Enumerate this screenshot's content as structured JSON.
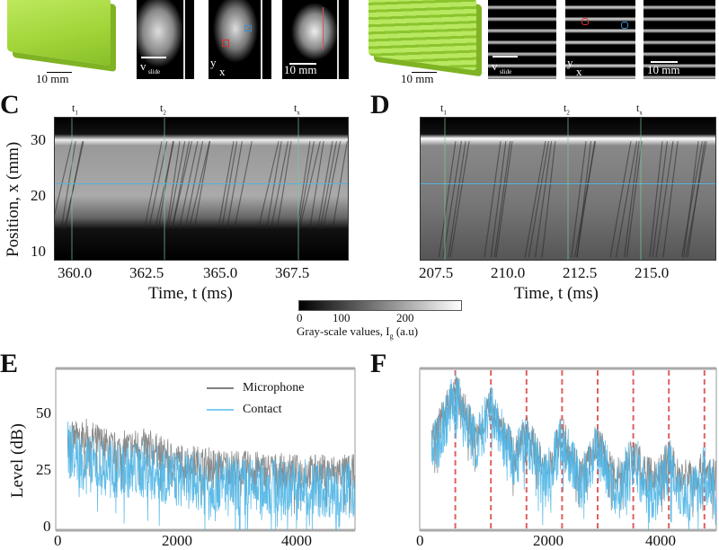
{
  "panel_a": {
    "scale_label": "10 mm",
    "image_scale_label": "10 mm",
    "v_label": "v",
    "v_sub": "slide",
    "axes_label_y": "y",
    "axes_label_x": "x"
  },
  "panel_b": {
    "scale_label": "10 mm",
    "image_scale_label": "10 mm",
    "v_label": "v",
    "v_sub": "slide",
    "axes_label_y": "y",
    "axes_label_x": "x"
  },
  "colors": {
    "block": "#a6dc3c",
    "microphone": "#808080",
    "contact": "#4fb5e6",
    "marker_line": "#e06060",
    "blue_line": "#5aaee0"
  },
  "panel_c": {
    "label": "C",
    "ylabel": "Position, x (mm)",
    "xlabel": "Time, t (ms)",
    "yticks": [
      "30",
      "20",
      "10"
    ],
    "xticks": [
      "360.0",
      "362.5",
      "365.0",
      "367.5"
    ],
    "markers": [
      "t",
      "t",
      "t"
    ],
    "marker_subs": [
      "1",
      "2",
      "x"
    ],
    "xlim": [
      359.1,
      369.4
    ],
    "ylim": [
      8.4,
      34.4
    ]
  },
  "panel_d": {
    "label": "D",
    "xlabel": "Time, t (ms)",
    "xticks": [
      "207.5",
      "210.0",
      "212.5",
      "215.0"
    ],
    "markers": [
      "t",
      "t",
      "t"
    ],
    "marker_subs": [
      "1",
      "2",
      "x"
    ],
    "xlim": [
      206.8,
      217.1
    ],
    "ylim": [
      8.4,
      34.4
    ]
  },
  "colorbar": {
    "ticks": [
      "0",
      "100",
      "200"
    ],
    "label": "Gray-scale values, I",
    "label_sub": "g",
    "label_unit": "(a.u)",
    "range": [
      0,
      255
    ]
  },
  "chart_data": [
    {
      "type": "line",
      "panel": "E",
      "ylabel": "Level (dB)",
      "yticks": [
        "50",
        "25",
        "0"
      ],
      "xticks": [
        "0",
        "2000",
        "4000"
      ],
      "xlim": [
        0,
        5000
      ],
      "ylim": [
        0,
        70
      ],
      "legend": "top-right",
      "series": [
        {
          "name": "Microphone",
          "envelope_x": [
            200,
            500,
            1000,
            1500,
            2000,
            3000,
            4000,
            5000
          ],
          "envelope_y": [
            40,
            42,
            36,
            38,
            31,
            28,
            26,
            26
          ]
        },
        {
          "name": "Contact",
          "envelope_x": [
            200,
            500,
            1000,
            1500,
            2000,
            3000,
            4000,
            5000
          ],
          "envelope_y": [
            36,
            30,
            27,
            27,
            23,
            20,
            19,
            18
          ]
        }
      ]
    },
    {
      "type": "line",
      "panel": "F",
      "xticks": [
        "0",
        "2000",
        "4000"
      ],
      "xlim": [
        0,
        5000
      ],
      "ylim": [
        0,
        70
      ],
      "harmonics_hz": [
        600,
        1200,
        1800,
        2400,
        3000,
        3600,
        4200,
        4800
      ],
      "peak_levels_db": [
        63,
        57,
        45,
        44,
        40,
        36,
        34,
        30
      ],
      "series": [
        {
          "name": "Microphone",
          "baseline_db": 28
        },
        {
          "name": "Contact",
          "baseline_db": 20
        }
      ]
    }
  ]
}
